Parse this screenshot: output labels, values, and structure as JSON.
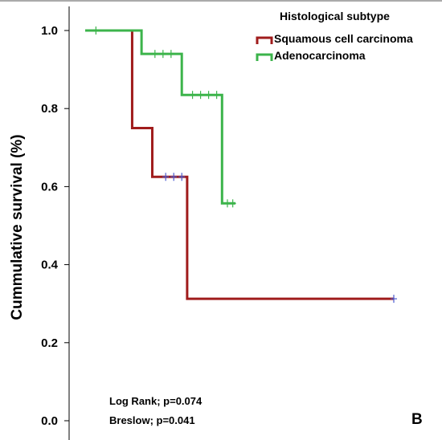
{
  "chart_data": {
    "type": "line",
    "step": true,
    "xlabel": "",
    "ylabel": "Cummulative survival (%)",
    "ylim": [
      0.0,
      1.05
    ],
    "yticks": [
      0.0,
      0.2,
      0.4,
      0.6,
      0.8,
      1.0
    ],
    "ytick_labels": [
      "0.0",
      "0.2",
      "0.4",
      "0.6",
      "0.8",
      "1.0"
    ],
    "grid": false,
    "legend": {
      "title": "Histological subtype",
      "placement": "top-right",
      "entries": [
        "Squamous cell carcinoma",
        "Adenocarcinoma"
      ]
    },
    "series": [
      {
        "name": "Squamous cell carcinoma",
        "color": "#a01c1c",
        "steps": [
          {
            "x": 0,
            "y": 1.0
          },
          {
            "x": 35,
            "y": 0.75
          },
          {
            "x": 50,
            "y": 0.625
          },
          {
            "x": 76,
            "y": 0.3125
          },
          {
            "x": 230,
            "y": 0.3125
          }
        ],
        "censored": [
          {
            "x": 60,
            "y": 0.625
          },
          {
            "x": 66,
            "y": 0.625
          },
          {
            "x": 72,
            "y": 0.625
          },
          {
            "x": 230,
            "y": 0.3125
          }
        ]
      },
      {
        "name": "Adenocarcinoma",
        "color": "#3cb44b",
        "steps": [
          {
            "x": 0,
            "y": 1.0
          },
          {
            "x": 42,
            "y": 0.94
          },
          {
            "x": 72,
            "y": 0.835
          },
          {
            "x": 102,
            "y": 0.557
          },
          {
            "x": 112,
            "y": 0.557
          }
        ],
        "censored": [
          {
            "x": 8,
            "y": 1.0
          },
          {
            "x": 52,
            "y": 0.94
          },
          {
            "x": 58,
            "y": 0.94
          },
          {
            "x": 64,
            "y": 0.94
          },
          {
            "x": 80,
            "y": 0.835
          },
          {
            "x": 86,
            "y": 0.835
          },
          {
            "x": 92,
            "y": 0.835
          },
          {
            "x": 98,
            "y": 0.835
          },
          {
            "x": 106,
            "y": 0.557
          },
          {
            "x": 110,
            "y": 0.557
          }
        ]
      }
    ],
    "annotations": [
      "Log Rank; p=0.074",
      "Breslow; p=0.041"
    ],
    "panel_label": "B"
  }
}
